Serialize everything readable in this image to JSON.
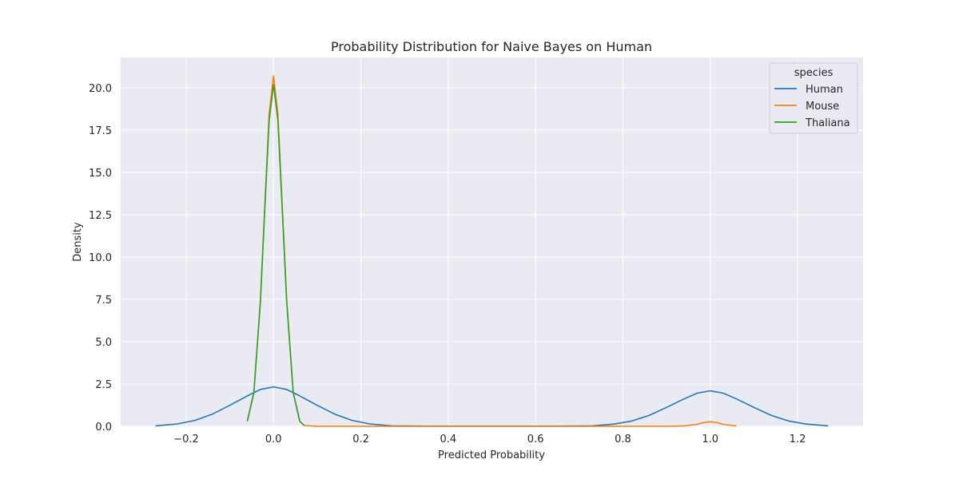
{
  "chart_data": {
    "type": "line",
    "subtype": "kde",
    "title": "Probability Distribution for Naive Bayes on Human",
    "xlabel": "Predicted Probability",
    "ylabel": "Density",
    "xlim": [
      -0.35,
      1.35
    ],
    "ylim": [
      0,
      21.8
    ],
    "xticks": [
      -0.2,
      0.0,
      0.2,
      0.4,
      0.6,
      0.8,
      1.0,
      1.2
    ],
    "xtick_labels": [
      "−0.2",
      "0.0",
      "0.2",
      "0.4",
      "0.6",
      "0.8",
      "1.0",
      "1.2"
    ],
    "yticks": [
      0.0,
      2.5,
      5.0,
      7.5,
      10.0,
      12.5,
      15.0,
      17.5,
      20.0
    ],
    "ytick_labels": [
      "0.0",
      "2.5",
      "5.0",
      "7.5",
      "10.0",
      "12.5",
      "15.0",
      "17.5",
      "20.0"
    ],
    "grid": true,
    "background": "#eaeaf2",
    "legend": {
      "title": "species",
      "position": "top-right"
    },
    "series": [
      {
        "name": "Human",
        "color": "#1f77b4",
        "x": [
          -0.27,
          -0.22,
          -0.18,
          -0.14,
          -0.1,
          -0.06,
          -0.03,
          0.0,
          0.03,
          0.06,
          0.1,
          0.14,
          0.18,
          0.22,
          0.27,
          0.35,
          0.5,
          0.65,
          0.73,
          0.78,
          0.82,
          0.86,
          0.9,
          0.94,
          0.97,
          1.0,
          1.03,
          1.06,
          1.1,
          1.14,
          1.18,
          1.22,
          1.27
        ],
        "y": [
          0.03,
          0.14,
          0.35,
          0.72,
          1.24,
          1.8,
          2.18,
          2.33,
          2.18,
          1.8,
          1.24,
          0.72,
          0.35,
          0.14,
          0.03,
          0.01,
          0.01,
          0.01,
          0.03,
          0.13,
          0.31,
          0.64,
          1.12,
          1.62,
          1.96,
          2.1,
          1.96,
          1.62,
          1.12,
          0.64,
          0.31,
          0.13,
          0.03
        ]
      },
      {
        "name": "Mouse",
        "color": "#ff7f0e",
        "x": [
          -0.06,
          -0.045,
          -0.03,
          -0.02,
          -0.01,
          0.0,
          0.01,
          0.02,
          0.03,
          0.045,
          0.06,
          0.07,
          0.1,
          0.5,
          0.9,
          0.94,
          0.97,
          0.985,
          1.0,
          1.015,
          1.03,
          1.06
        ],
        "y": [
          0.3,
          2.0,
          7.5,
          13.0,
          18.5,
          20.7,
          18.5,
          13.0,
          7.5,
          2.0,
          0.3,
          0.05,
          0.0,
          0.0,
          0.0,
          0.02,
          0.12,
          0.22,
          0.27,
          0.22,
          0.12,
          0.02
        ]
      },
      {
        "name": "Thaliana",
        "color": "#2ca02c",
        "x": [
          -0.06,
          -0.045,
          -0.03,
          -0.02,
          -0.01,
          0.0,
          0.01,
          0.02,
          0.03,
          0.045,
          0.06,
          0.07
        ],
        "y": [
          0.3,
          2.0,
          7.4,
          12.8,
          18.1,
          20.2,
          18.1,
          12.8,
          7.4,
          2.0,
          0.3,
          0.05
        ]
      }
    ]
  }
}
